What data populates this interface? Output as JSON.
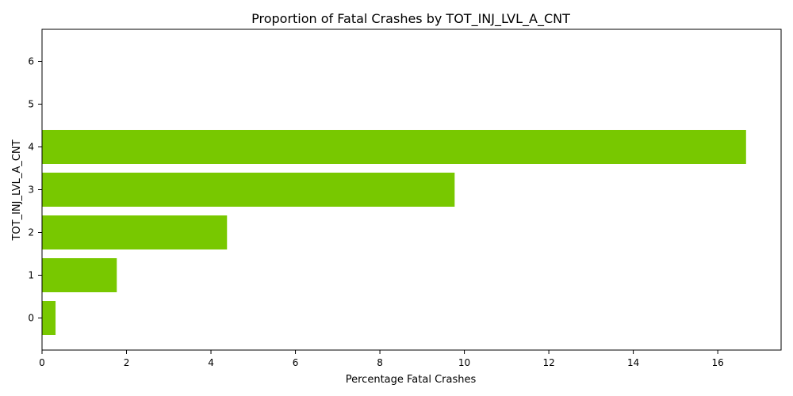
{
  "chart_data": {
    "type": "bar",
    "orientation": "horizontal",
    "title": "Proportion of Fatal Crashes by TOT_INJ_LVL_A_CNT",
    "xlabel": "Percentage Fatal Crashes",
    "ylabel": "TOT_INJ_LVL_A_CNT",
    "categories": [
      "0",
      "1",
      "2",
      "3",
      "4",
      "5",
      "6"
    ],
    "values": [
      0.32,
      1.77,
      4.38,
      9.77,
      16.67,
      0,
      0
    ],
    "xlim": [
      0,
      17.5
    ],
    "xticks": [
      "0",
      "2",
      "4",
      "6",
      "8",
      "10",
      "12",
      "14",
      "16"
    ],
    "grid": false,
    "legend": "none",
    "bar_color": "#78c800"
  }
}
